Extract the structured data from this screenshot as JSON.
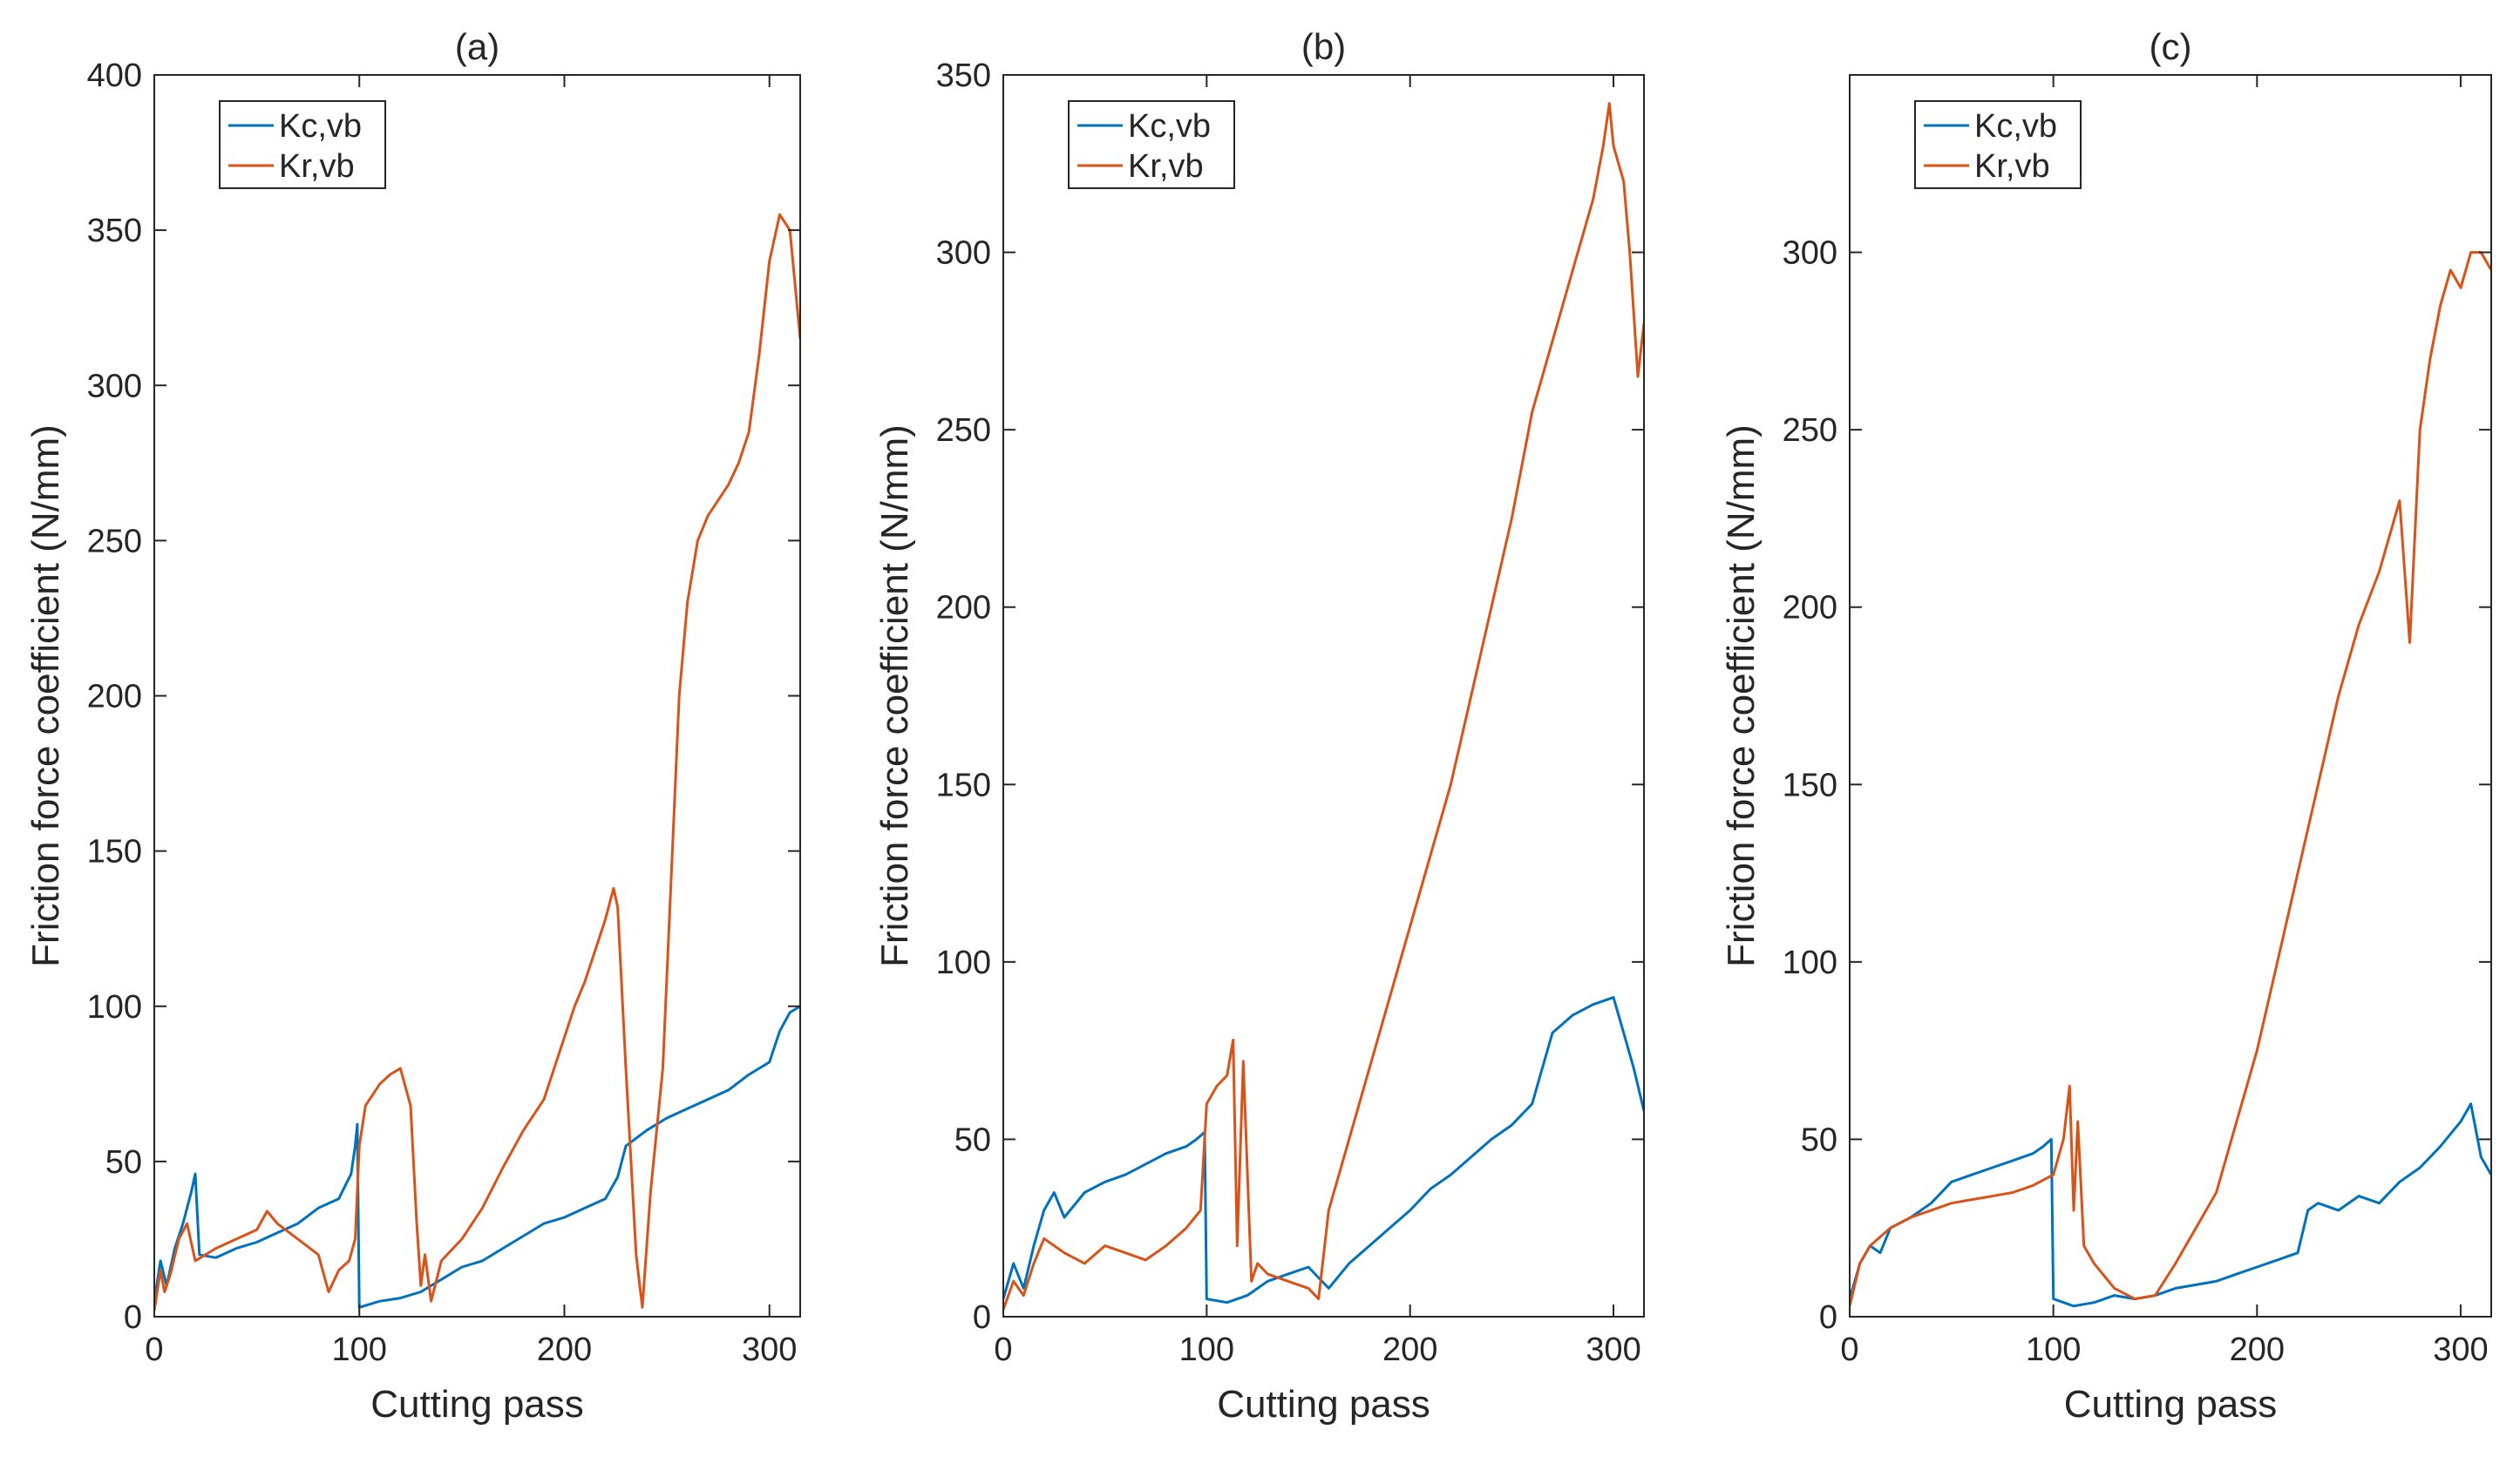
{
  "figure": {
    "colors": {
      "kc": "#0072BD",
      "kr": "#D95319",
      "axis": "#262626"
    }
  },
  "chart_data": [
    {
      "type": "line",
      "title": "(a)",
      "xlabel": "Cutting pass",
      "ylabel": "Friction force coefficient (N/mm)",
      "xlim": [
        0,
        315
      ],
      "ylim": [
        0,
        400
      ],
      "xticks": [
        0,
        100,
        200,
        300
      ],
      "yticks": [
        0,
        50,
        100,
        150,
        200,
        250,
        300,
        350,
        400
      ],
      "legend": "top-left",
      "series": [
        {
          "name": "Kc,vb",
          "color": "#0072BD",
          "x": [
            0,
            3,
            6,
            10,
            14,
            18,
            20,
            22,
            30,
            40,
            50,
            60,
            70,
            80,
            90,
            96,
            98,
            99,
            100,
            110,
            120,
            130,
            140,
            150,
            160,
            170,
            180,
            190,
            200,
            210,
            220,
            226,
            230,
            240,
            250,
            260,
            270,
            280,
            290,
            300,
            305,
            310,
            315
          ],
          "y": [
            5,
            18,
            10,
            22,
            30,
            40,
            46,
            20,
            19,
            22,
            24,
            27,
            30,
            35,
            38,
            46,
            55,
            62,
            3,
            5,
            6,
            8,
            12,
            16,
            18,
            22,
            26,
            30,
            32,
            35,
            38,
            45,
            55,
            60,
            64,
            67,
            70,
            73,
            78,
            82,
            92,
            98,
            100
          ]
        },
        {
          "name": "Kr,vb",
          "color": "#D95319",
          "x": [
            0,
            3,
            5,
            8,
            12,
            16,
            20,
            25,
            30,
            40,
            50,
            55,
            60,
            70,
            80,
            85,
            90,
            95,
            98,
            100,
            103,
            110,
            115,
            120,
            125,
            128,
            130,
            132,
            135,
            140,
            150,
            160,
            170,
            180,
            190,
            200,
            205,
            210,
            215,
            220,
            224,
            226,
            230,
            235,
            238,
            242,
            248,
            252,
            256,
            260,
            265,
            270,
            280,
            285,
            290,
            295,
            300,
            305,
            310,
            315
          ],
          "y": [
            2,
            15,
            8,
            14,
            25,
            30,
            18,
            20,
            22,
            25,
            28,
            34,
            30,
            25,
            20,
            8,
            15,
            18,
            25,
            55,
            68,
            75,
            78,
            80,
            68,
            30,
            10,
            20,
            5,
            18,
            25,
            35,
            48,
            60,
            70,
            90,
            100,
            108,
            118,
            128,
            138,
            132,
            80,
            20,
            3,
            40,
            80,
            140,
            200,
            230,
            250,
            258,
            268,
            275,
            285,
            310,
            340,
            355,
            350,
            315
          ]
        }
      ]
    },
    {
      "type": "line",
      "title": "(b)",
      "xlabel": "Cutting pass",
      "ylabel": "Friction force coefficient (N/mm)",
      "xlim": [
        0,
        315
      ],
      "ylim": [
        0,
        350
      ],
      "xticks": [
        0,
        100,
        200,
        300
      ],
      "yticks": [
        0,
        50,
        100,
        150,
        200,
        250,
        300,
        350
      ],
      "legend": "top-left",
      "series": [
        {
          "name": "Kc,vb",
          "color": "#0072BD",
          "x": [
            0,
            5,
            10,
            15,
            20,
            25,
            30,
            40,
            50,
            60,
            70,
            80,
            90,
            95,
            99,
            100,
            110,
            120,
            130,
            140,
            150,
            160,
            170,
            180,
            190,
            200,
            210,
            220,
            230,
            240,
            250,
            260,
            265,
            270,
            280,
            290,
            300,
            305,
            310,
            315
          ],
          "y": [
            5,
            15,
            8,
            20,
            30,
            35,
            28,
            35,
            38,
            40,
            43,
            46,
            48,
            50,
            52,
            5,
            4,
            6,
            10,
            12,
            14,
            8,
            15,
            20,
            25,
            30,
            36,
            40,
            45,
            50,
            54,
            60,
            70,
            80,
            85,
            88,
            90,
            80,
            70,
            58
          ]
        },
        {
          "name": "Kr,vb",
          "color": "#D95319",
          "x": [
            0,
            5,
            10,
            15,
            20,
            30,
            40,
            50,
            60,
            70,
            80,
            90,
            97,
            100,
            105,
            110,
            113,
            115,
            118,
            122,
            125,
            130,
            140,
            150,
            155,
            160,
            170,
            180,
            190,
            200,
            210,
            220,
            230,
            240,
            250,
            260,
            270,
            280,
            290,
            295,
            298,
            300,
            305,
            308,
            312,
            315
          ],
          "y": [
            2,
            10,
            6,
            15,
            22,
            18,
            15,
            20,
            18,
            16,
            20,
            25,
            30,
            60,
            65,
            68,
            78,
            20,
            72,
            10,
            15,
            12,
            10,
            8,
            5,
            30,
            50,
            70,
            90,
            110,
            130,
            150,
            175,
            200,
            225,
            255,
            275,
            295,
            315,
            330,
            342,
            330,
            320,
            300,
            265,
            280
          ]
        }
      ]
    },
    {
      "type": "line",
      "title": "(c)",
      "xlabel": "Cutting pass",
      "ylabel": "Friction force coefficient (N/mm)",
      "xlim": [
        0,
        315
      ],
      "ylim": [
        0,
        350
      ],
      "xticks": [
        0,
        100,
        200,
        300
      ],
      "yticks": [
        0,
        50,
        100,
        150,
        200,
        250,
        300
      ],
      "legend": "top-left",
      "series": [
        {
          "name": "Kc,vb",
          "color": "#0072BD",
          "x": [
            0,
            5,
            10,
            15,
            20,
            30,
            40,
            50,
            60,
            70,
            80,
            90,
            95,
            99,
            100,
            110,
            120,
            130,
            140,
            150,
            160,
            170,
            180,
            190,
            200,
            210,
            220,
            225,
            230,
            240,
            250,
            260,
            270,
            280,
            290,
            300,
            305,
            310,
            315
          ],
          "y": [
            5,
            15,
            20,
            18,
            25,
            28,
            32,
            38,
            40,
            42,
            44,
            46,
            48,
            50,
            5,
            3,
            4,
            6,
            5,
            6,
            8,
            9,
            10,
            12,
            14,
            16,
            18,
            30,
            32,
            30,
            34,
            32,
            38,
            42,
            48,
            55,
            60,
            45,
            40
          ]
        },
        {
          "name": "Kr,vb",
          "color": "#D95319",
          "x": [
            0,
            5,
            10,
            20,
            30,
            40,
            50,
            60,
            70,
            80,
            90,
            100,
            105,
            108,
            110,
            112,
            115,
            120,
            130,
            140,
            150,
            160,
            170,
            180,
            190,
            200,
            210,
            220,
            230,
            240,
            250,
            260,
            270,
            275,
            280,
            285,
            290,
            295,
            300,
            305,
            310,
            315
          ],
          "y": [
            3,
            15,
            20,
            25,
            28,
            30,
            32,
            33,
            34,
            35,
            37,
            40,
            50,
            65,
            30,
            55,
            20,
            15,
            8,
            5,
            6,
            15,
            25,
            35,
            55,
            75,
            100,
            125,
            150,
            175,
            195,
            210,
            230,
            190,
            250,
            270,
            285,
            295,
            290,
            300,
            300,
            295
          ]
        }
      ]
    }
  ]
}
